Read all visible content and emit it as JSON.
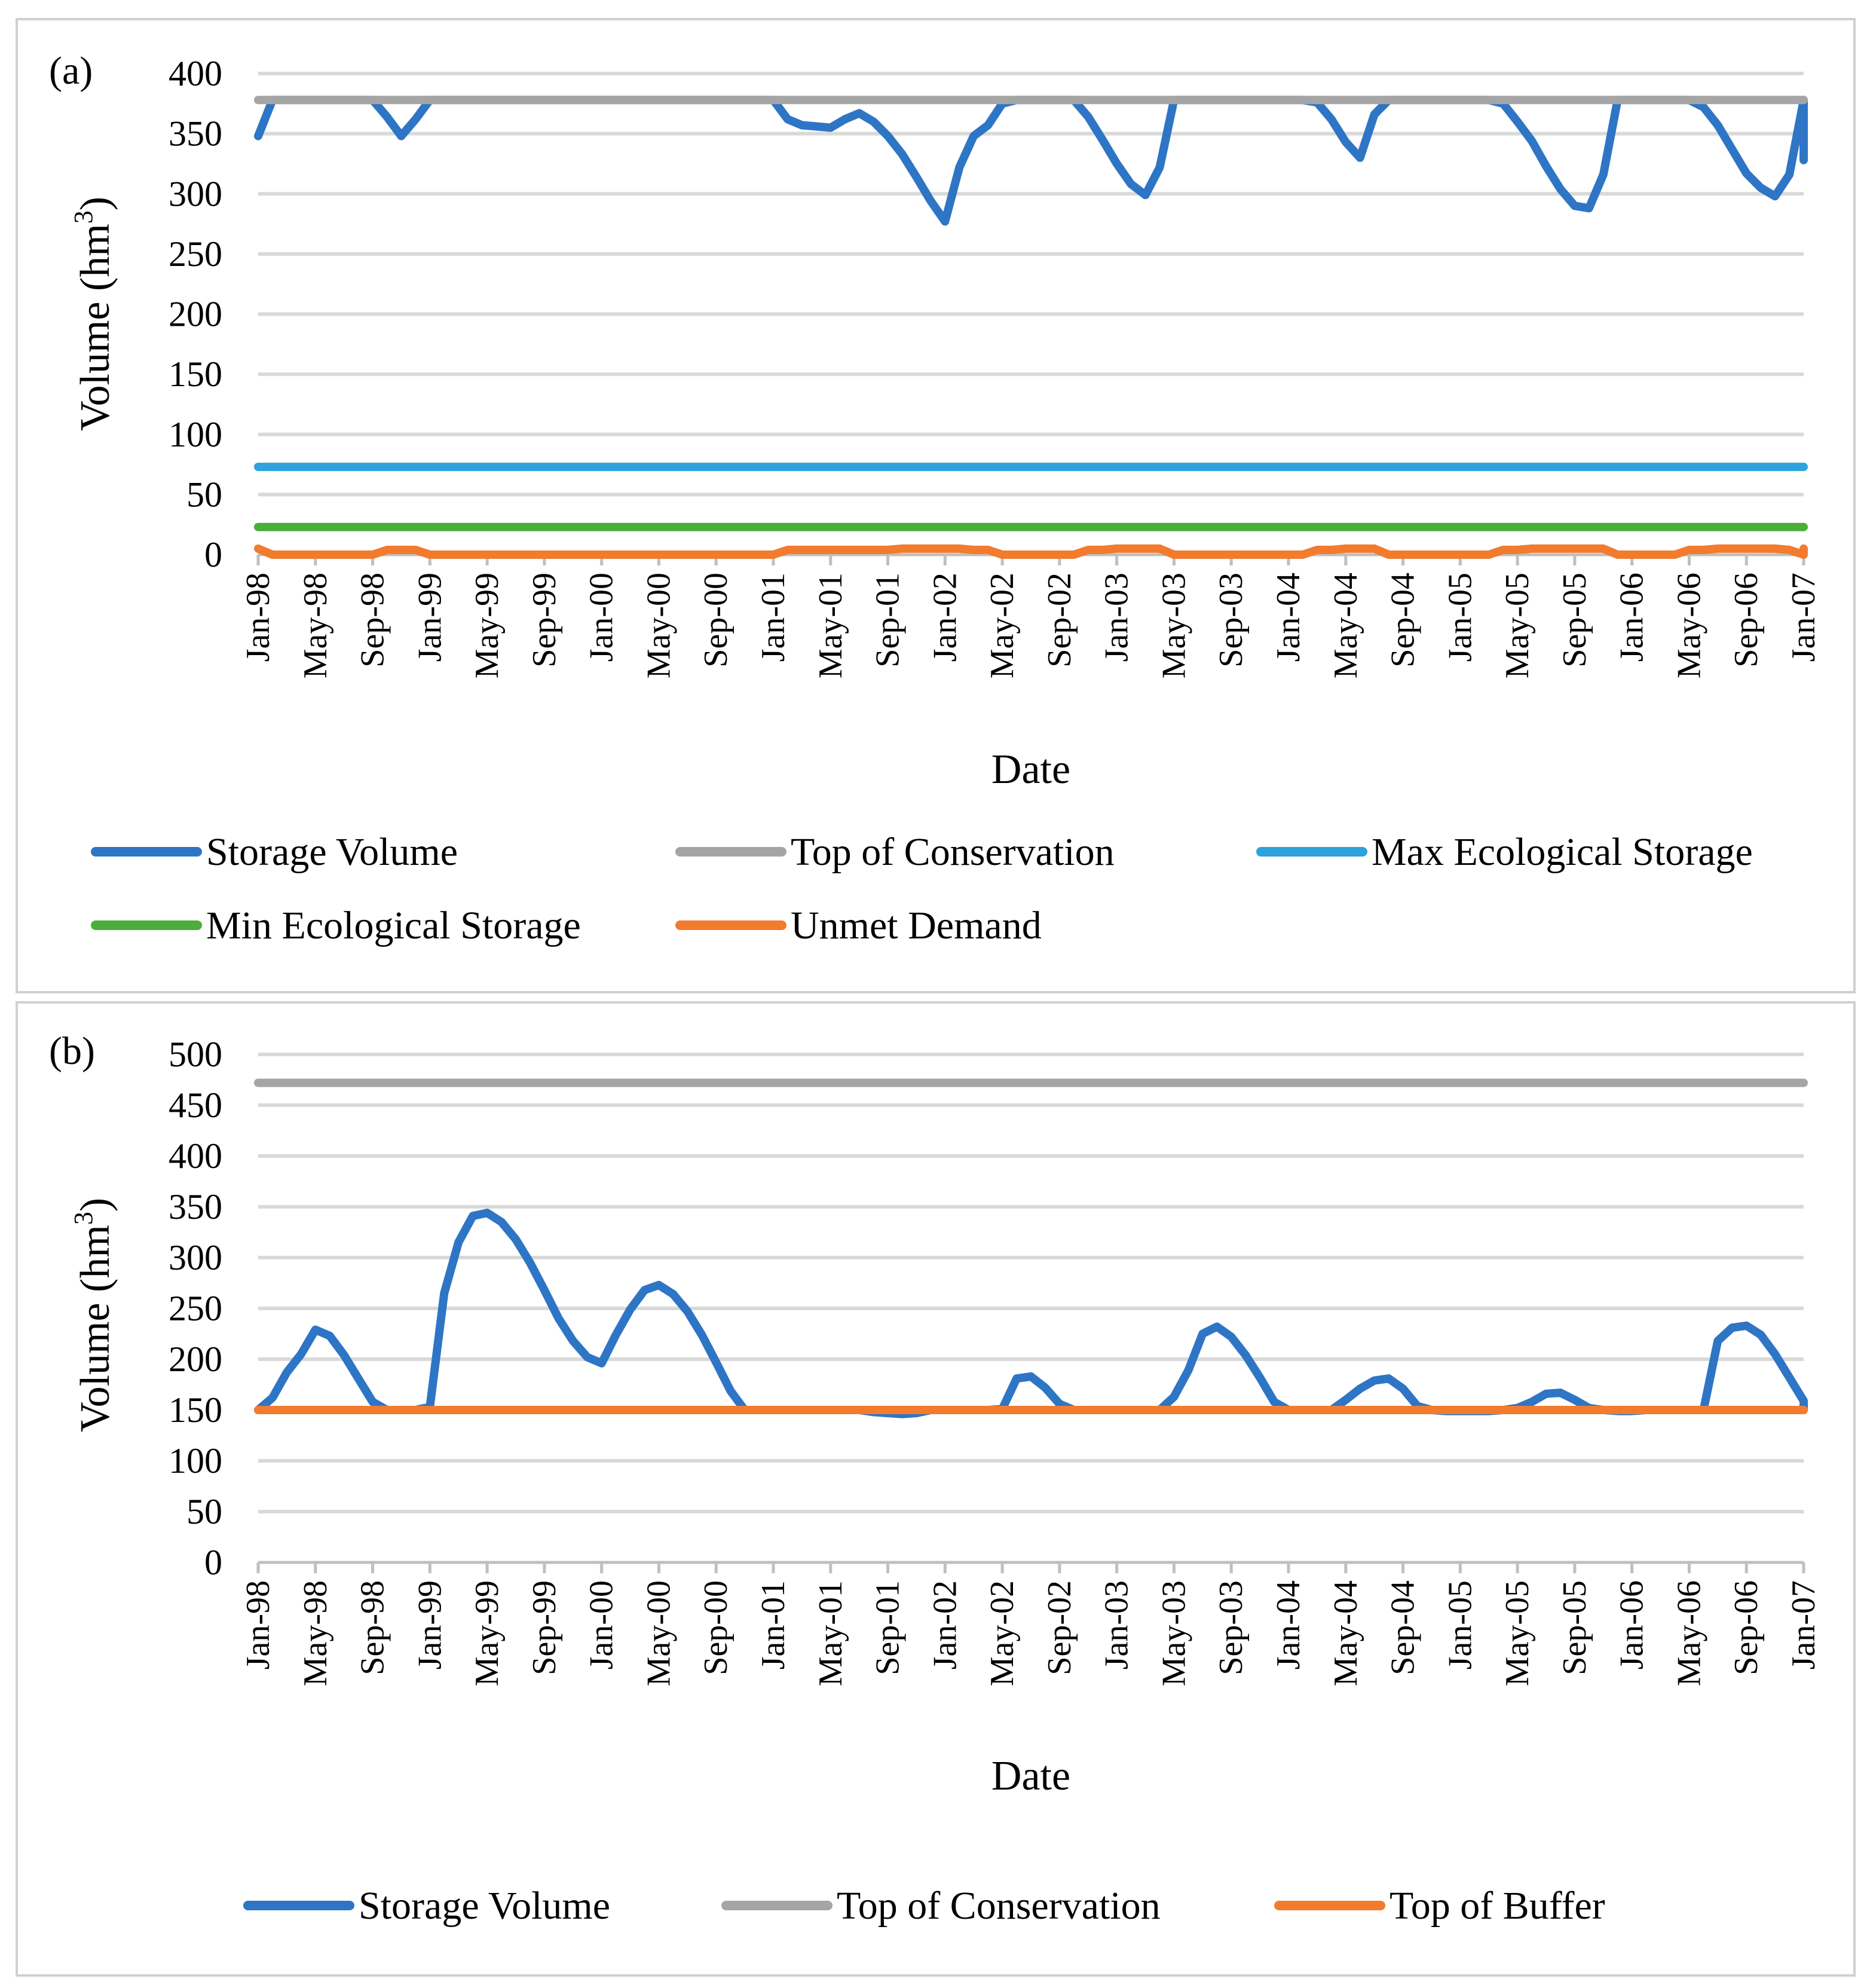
{
  "chart_data": [
    {
      "panel_label": "(a)",
      "type": "line",
      "xlabel": "Date",
      "ylabel_base": "Volume (hm",
      "ylabel_sup": "3",
      "ylabel_close": ")",
      "ylim": [
        0,
        400
      ],
      "yticks": [
        "0",
        "50",
        "100",
        "150",
        "200",
        "250",
        "300",
        "350",
        "400"
      ],
      "x_tick_labels": [
        "Jan-98",
        "May-98",
        "Sep-98",
        "Jan-99",
        "May-99",
        "Sep-99",
        "Jan-00",
        "May-00",
        "Sep-00",
        "Jan-01",
        "May-01",
        "Sep-01",
        "Jan-02",
        "May-02",
        "Sep-02",
        "Jan-03",
        "May-03",
        "Sep-03",
        "Jan-04",
        "May-04",
        "Sep-04",
        "Jan-05",
        "May-05",
        "Sep-05",
        "Jan-06",
        "May-06",
        "Sep-06",
        "Jan-07"
      ],
      "x_start": "Jan-98",
      "x_unit": "month",
      "grid": true,
      "legend_position": "bottom",
      "series": [
        {
          "name": "Storage Volume",
          "color": "#2e75c5",
          "values": [
            348,
            378,
            378,
            378,
            378,
            378,
            378,
            378,
            378,
            364,
            348,
            362,
            378,
            378,
            378,
            378,
            378,
            378,
            378,
            378,
            378,
            378,
            378,
            378,
            378,
            378,
            378,
            378,
            378,
            378,
            378,
            378,
            378,
            378,
            378,
            378,
            378,
            362,
            357,
            356,
            355,
            362,
            367,
            360,
            348,
            333,
            314,
            294,
            277,
            322,
            348,
            357,
            375,
            378,
            378,
            378,
            378,
            378,
            364,
            345,
            325,
            308,
            299,
            322,
            378,
            378,
            378,
            378,
            378,
            378,
            378,
            378,
            378,
            378,
            376,
            362,
            343,
            330,
            366,
            378,
            378,
            378,
            378,
            378,
            378,
            378,
            378,
            375,
            360,
            344,
            323,
            304,
            290,
            288,
            316,
            378,
            378,
            378,
            378,
            378,
            378,
            372,
            357,
            337,
            317,
            305,
            298,
            316,
            378,
            378,
            378,
            378,
            378,
            378,
            378,
            378,
            378,
            378,
            364,
            342,
            328
          ]
        },
        {
          "name": "Top of Conservation",
          "color": "#a5a5a5",
          "values": [
            378,
            378
          ]
        },
        {
          "name": "Max Ecological Storage",
          "color": "#2ea2dc",
          "values": [
            73,
            73
          ]
        },
        {
          "name": "Min Ecological Storage",
          "color": "#4cad3c",
          "values": [
            23,
            23
          ]
        },
        {
          "name": "Unmet Demand",
          "color": "#f27b2d",
          "values": [
            5,
            0,
            0,
            0,
            0,
            0,
            0,
            0,
            0,
            4,
            4,
            4,
            0,
            0,
            0,
            0,
            0,
            0,
            0,
            0,
            0,
            0,
            0,
            0,
            0,
            0,
            0,
            0,
            0,
            0,
            0,
            0,
            0,
            0,
            0,
            0,
            0,
            4,
            4,
            4,
            4,
            4,
            4,
            4,
            4,
            5,
            5,
            5,
            5,
            5,
            4,
            4,
            0,
            0,
            0,
            0,
            0,
            0,
            4,
            4,
            5,
            5,
            5,
            5,
            0,
            0,
            0,
            0,
            0,
            0,
            0,
            0,
            0,
            0,
            4,
            4,
            5,
            5,
            5,
            0,
            0,
            0,
            0,
            0,
            0,
            0,
            0,
            4,
            4,
            5,
            5,
            5,
            5,
            5,
            5,
            0,
            0,
            0,
            0,
            0,
            4,
            4,
            5,
            5,
            5,
            5,
            5,
            4,
            0,
            0,
            0,
            0,
            0,
            0,
            0,
            0,
            0,
            0,
            4,
            5,
            5
          ]
        }
      ]
    },
    {
      "panel_label": "(b)",
      "type": "line",
      "xlabel": "Date",
      "ylabel_base": "Volume (hm",
      "ylabel_sup": "3",
      "ylabel_close": ")",
      "ylim": [
        0,
        500
      ],
      "yticks": [
        "0",
        "50",
        "100",
        "150",
        "200",
        "250",
        "300",
        "350",
        "400",
        "450",
        "500"
      ],
      "x_tick_labels": [
        "Jan-98",
        "May-98",
        "Sep-98",
        "Jan-99",
        "May-99",
        "Sep-99",
        "Jan-00",
        "May-00",
        "Sep-00",
        "Jan-01",
        "May-01",
        "Sep-01",
        "Jan-02",
        "May-02",
        "Sep-02",
        "Jan-03",
        "May-03",
        "Sep-03",
        "Jan-04",
        "May-04",
        "Sep-04",
        "Jan-05",
        "May-05",
        "Sep-05",
        "Jan-06",
        "May-06",
        "Sep-06",
        "Jan-07"
      ],
      "x_start": "Jan-98",
      "x_unit": "month",
      "grid": true,
      "legend_position": "bottom",
      "series": [
        {
          "name": "Storage Volume",
          "color": "#2e75c5",
          "values": [
            150,
            162,
            187,
            205,
            229,
            223,
            204,
            181,
            158,
            150,
            150,
            150,
            153,
            265,
            315,
            341,
            344,
            335,
            318,
            295,
            268,
            240,
            218,
            202,
            196,
            224,
            249,
            268,
            273,
            264,
            247,
            224,
            197,
            169,
            150,
            150,
            150,
            150,
            150,
            150,
            150,
            150,
            150,
            148,
            147,
            146,
            147,
            150,
            150,
            150,
            150,
            150,
            151,
            181,
            183,
            172,
            156,
            150,
            150,
            150,
            150,
            150,
            150,
            150,
            163,
            189,
            225,
            232,
            222,
            204,
            182,
            158,
            150,
            150,
            150,
            150,
            160,
            171,
            179,
            181,
            171,
            154,
            150,
            149,
            149,
            149,
            149,
            150,
            152,
            158,
            166,
            167,
            160,
            152,
            150,
            149,
            149,
            150,
            150,
            150,
            150,
            150,
            218,
            231,
            233,
            224,
            205,
            182,
            159,
            150,
            150
          ]
        },
        {
          "name": "Top of Conservation",
          "color": "#a5a5a5",
          "values": [
            472,
            472
          ]
        },
        {
          "name": "Top of Buffer",
          "color": "#f27b2d",
          "values": [
            150,
            150
          ]
        }
      ]
    }
  ]
}
